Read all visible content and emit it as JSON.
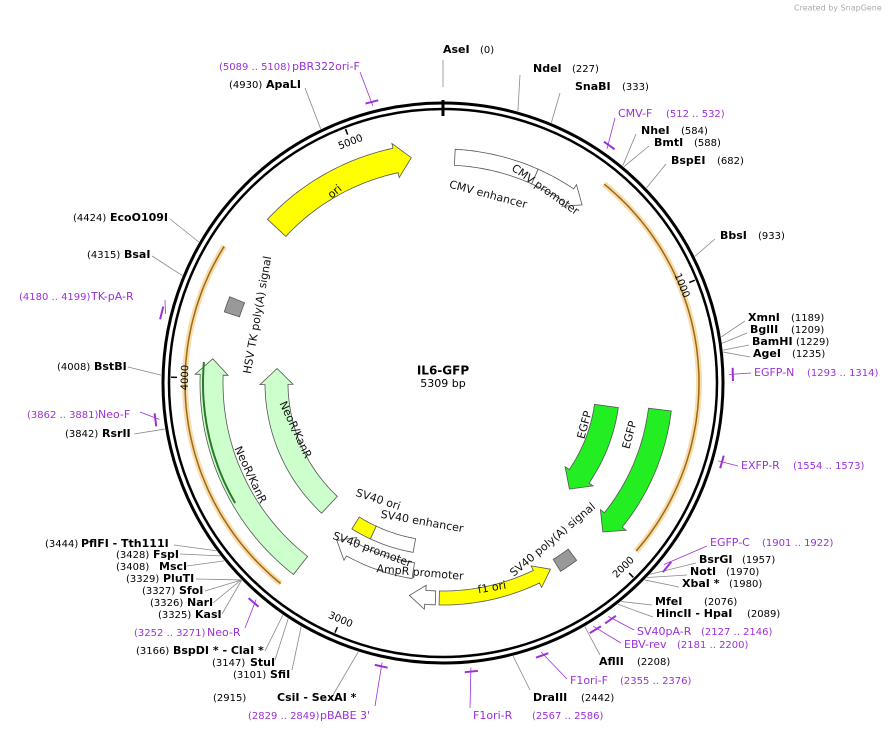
{
  "header": {
    "credit": "Created by SnapGene"
  },
  "map": {
    "name": "IL6-GFP",
    "length": "5309 bp",
    "ticks": [
      1000,
      2000,
      3000,
      4000,
      5000
    ]
  },
  "enzymes": [
    {
      "name": "AseI",
      "position": "(0)"
    },
    {
      "name": "NdeI",
      "position": "(227)"
    },
    {
      "name": "SnaBI",
      "position": "(333)"
    },
    {
      "name": "NheI",
      "position": "(584)"
    },
    {
      "name": "BmtI",
      "position": "(588)"
    },
    {
      "name": "BspEI",
      "position": "(682)"
    },
    {
      "name": "BbsI",
      "position": "(933)"
    },
    {
      "name": "XmnI",
      "position": "(1189)"
    },
    {
      "name": "BglII",
      "position": "(1209)"
    },
    {
      "name": "BamHI",
      "position": "(1229)"
    },
    {
      "name": "AgeI",
      "position": "(1235)"
    },
    {
      "name": "BsrGI",
      "position": "(1957)"
    },
    {
      "name": "NotI",
      "position": "(1970)"
    },
    {
      "name": "XbaI *",
      "position": "(1980)"
    },
    {
      "name": "MfeI",
      "position": "(2076)"
    },
    {
      "name": "HincII  - HpaI",
      "position": "(2089)"
    },
    {
      "name": "AflII",
      "position": "(2208)"
    },
    {
      "name": "DraIII",
      "position": "(2442)"
    },
    {
      "name": "CsiI  - SexAI *",
      "position": "(2915)"
    },
    {
      "name": "SfiI",
      "position": "(3101)"
    },
    {
      "name": "StuI",
      "position": "(3147)"
    },
    {
      "name": "BspDI *  - ClaI *",
      "position": "(3166)"
    },
    {
      "name": "KasI",
      "position": "(3325)"
    },
    {
      "name": "NarI",
      "position": "(3326)"
    },
    {
      "name": "SfoI",
      "position": "(3327)"
    },
    {
      "name": "PluTI",
      "position": "(3329)"
    },
    {
      "name": "MscI",
      "position": "(3408)"
    },
    {
      "name": "FspI",
      "position": "(3428)"
    },
    {
      "name": "PflFI  - Tth111I",
      "position": "(3444)"
    },
    {
      "name": "RsrII",
      "position": "(3842)"
    },
    {
      "name": "BstBI",
      "position": "(4008)"
    },
    {
      "name": "BsaI",
      "position": "(4315)"
    },
    {
      "name": "EcoO109I",
      "position": "(4424)"
    },
    {
      "name": "ApaLI",
      "position": "(4930)"
    }
  ],
  "primers": [
    {
      "name": "pBR322ori-F",
      "range": "(5089 .. 5108)"
    },
    {
      "name": "CMV-F",
      "range": "(512 .. 532)"
    },
    {
      "name": "EGFP-N",
      "range": "(1293 .. 1314)"
    },
    {
      "name": "EXFP-R",
      "range": "(1554 .. 1573)"
    },
    {
      "name": "EGFP-C",
      "range": "(1901 .. 1922)"
    },
    {
      "name": "SV40pA-R",
      "range": "(2127 .. 2146)"
    },
    {
      "name": "EBV-rev",
      "range": "(2181 .. 2200)"
    },
    {
      "name": "F1ori-F",
      "range": "(2355 .. 2376)"
    },
    {
      "name": "F1ori-R",
      "range": "(2567 .. 2586)"
    },
    {
      "name": "pBABE 3'",
      "range": "(2829 .. 2849)"
    },
    {
      "name": "Neo-R",
      "range": "(3252 .. 3271)"
    },
    {
      "name": "Neo-F",
      "range": "(3862 .. 3881)"
    },
    {
      "name": "TK-pA-R",
      "range": "(4180 .. 4199)"
    }
  ],
  "features": [
    "ori",
    "CMV enhancer",
    "CMV promoter",
    "HSV TK poly(A) signal",
    "EGFP",
    "EGFP",
    "NeoR/KanR",
    "NeoR/KanR",
    "SV40 ori",
    "SV40 enhancer",
    "SV40 promoter",
    "AmpR promoter",
    "f1 ori",
    "SV40 poly(A) signal"
  ]
}
